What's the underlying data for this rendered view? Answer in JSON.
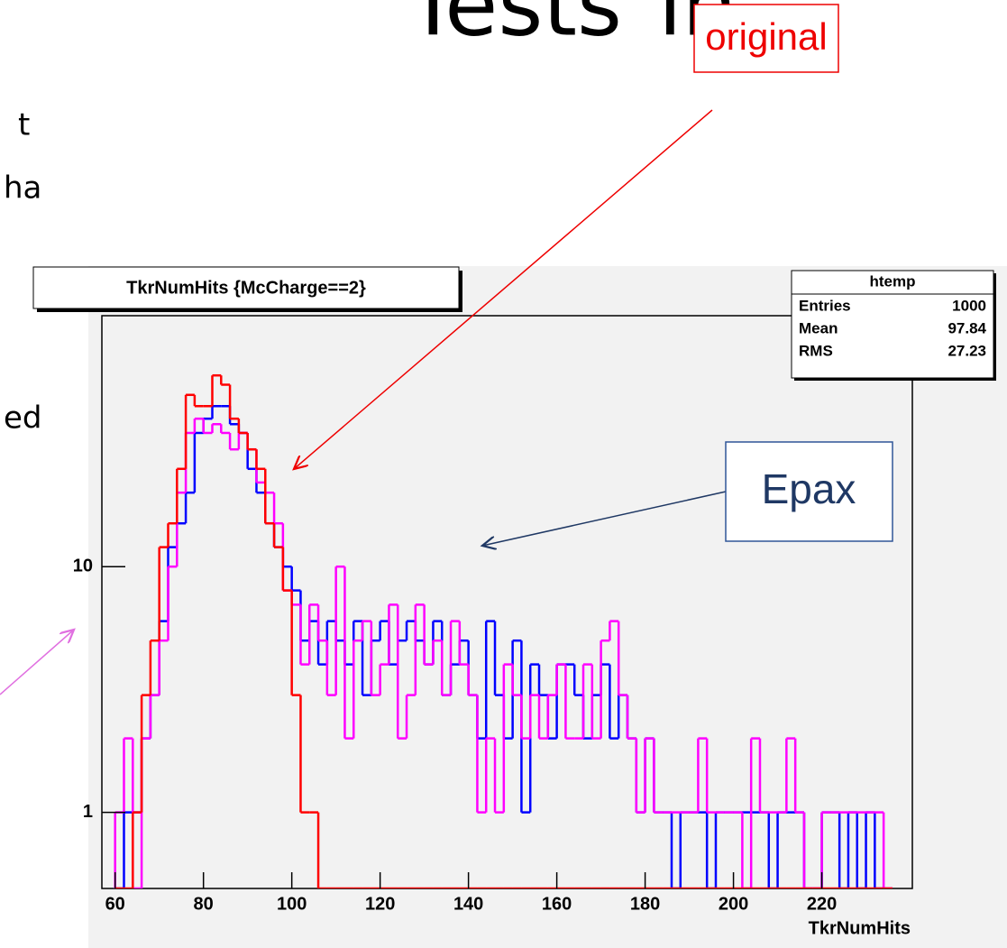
{
  "slide_fragments": {
    "title": [
      "Tests",
      "in"
    ],
    "left": [
      "t",
      "ha",
      "ed"
    ]
  },
  "annotations": {
    "original": "original",
    "epax": "Epax"
  },
  "stats": {
    "title": "htemp",
    "rows": [
      [
        "Entries",
        1000
      ],
      [
        "Mean",
        97.84
      ],
      [
        "RMS",
        27.23
      ]
    ]
  },
  "chart_data": {
    "type": "histogram",
    "title": "TkrNumHits {McCharge==2}",
    "x_label": "TkrNumHits",
    "log_y": true,
    "xlim": [
      57,
      240.5
    ],
    "ylim": [
      0.49,
      105
    ],
    "xticks": [
      60,
      80,
      100,
      120,
      140,
      160,
      180,
      200,
      220
    ],
    "yticks": [
      1,
      10
    ],
    "bins": [
      60,
      62,
      64,
      66,
      68,
      70,
      72,
      74,
      76,
      78,
      80,
      82,
      84,
      86,
      88,
      90,
      92,
      94,
      96,
      98,
      100,
      102,
      104,
      106,
      108,
      110,
      112,
      114,
      116,
      118,
      120,
      122,
      124,
      126,
      128,
      130,
      132,
      134,
      136,
      138,
      140,
      142,
      144,
      146,
      148,
      150,
      152,
      154,
      156,
      158,
      160,
      162,
      164,
      166,
      168,
      170,
      172,
      174,
      176,
      178,
      180,
      182,
      184,
      186,
      188,
      190,
      192,
      194,
      196,
      198,
      200,
      202,
      204,
      206,
      208,
      210,
      212,
      214,
      216,
      218,
      220,
      222,
      224,
      226,
      228,
      230,
      232,
      234,
      236
    ],
    "series": [
      {
        "color": "#0000ff",
        "values": [
          0,
          1,
          1,
          2,
          3,
          6,
          12,
          15,
          20,
          35,
          40,
          45,
          45,
          38,
          35,
          25,
          20,
          15,
          12,
          10,
          8,
          5,
          6,
          4,
          6,
          5,
          4,
          6,
          3,
          5,
          6,
          4,
          5,
          6,
          5,
          4,
          6,
          3,
          4,
          5,
          3,
          2,
          6,
          3,
          2,
          5,
          1,
          4,
          3,
          2,
          4,
          4,
          3,
          2,
          3,
          4,
          2,
          3,
          2,
          1,
          2,
          1,
          1,
          0,
          1,
          1,
          1,
          0,
          1,
          1,
          1,
          1,
          1,
          1,
          0,
          1,
          1,
          1,
          0,
          0,
          1,
          1,
          0,
          1,
          0,
          1,
          0,
          0
        ]
      },
      {
        "color": "#ff00ff",
        "values": [
          1,
          2,
          0,
          2,
          3,
          5,
          10,
          20,
          35,
          40,
          35,
          38,
          35,
          30,
          35,
          30,
          22,
          20,
          15,
          8,
          7,
          4,
          7,
          5,
          3,
          10,
          2,
          5,
          6,
          3,
          4,
          7,
          2,
          3,
          7,
          4,
          5,
          3,
          6,
          4,
          3,
          1,
          2,
          1,
          4,
          3,
          2,
          3,
          2,
          3,
          4,
          2,
          2,
          4,
          2,
          5,
          6,
          3,
          2,
          1,
          2,
          1,
          1,
          1,
          1,
          1,
          2,
          1,
          1,
          1,
          1,
          0,
          2,
          1,
          1,
          1,
          2,
          1,
          0,
          0,
          1,
          1,
          1,
          1,
          1,
          1,
          1,
          0
        ]
      },
      {
        "color": "#ff0000",
        "values": [
          0,
          0,
          1,
          3,
          5,
          12,
          15,
          25,
          50,
          45,
          45,
          60,
          55,
          40,
          35,
          30,
          25,
          15,
          12,
          8,
          3,
          1,
          1,
          0,
          0,
          0,
          0,
          0,
          0,
          0,
          0,
          0,
          0,
          0,
          0,
          0,
          0,
          0,
          0,
          0,
          0,
          0,
          0,
          0,
          0,
          0,
          0,
          0,
          0,
          0,
          0,
          0,
          0,
          0,
          0,
          0,
          0,
          0,
          0,
          0,
          0,
          0,
          0,
          0,
          0,
          0,
          0,
          0,
          0,
          0,
          0,
          0,
          0,
          0,
          0,
          0,
          0,
          0,
          0,
          0,
          0,
          0,
          0,
          0,
          0,
          0,
          0,
          0
        ]
      }
    ]
  }
}
